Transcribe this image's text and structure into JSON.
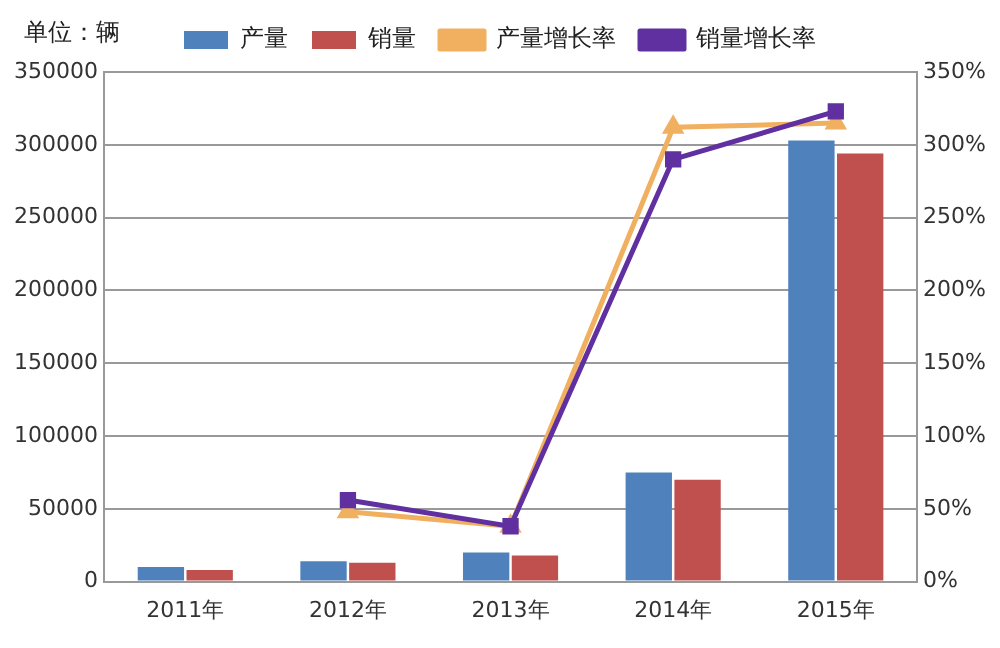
{
  "chart_data": {
    "type": "bar",
    "categories": [
      "2011年",
      "2012年",
      "2013年",
      "2014年",
      "2015年"
    ],
    "series": [
      {
        "name": "产量",
        "color": "#4f81bd",
        "values": [
          10000,
          14000,
          20000,
          75000,
          303000
        ]
      },
      {
        "name": "销量",
        "color": "#c0504d",
        "values": [
          8000,
          13000,
          18000,
          70000,
          294000
        ]
      },
      {
        "name": "产量增长率",
        "type": "line",
        "axis": "y2",
        "color": "#f0b060",
        "marker": "triangle",
        "values": [
          null,
          48,
          38,
          312,
          315
        ]
      },
      {
        "name": "销量增长率",
        "type": "line",
        "axis": "y2",
        "color": "#6030a0",
        "marker": "square",
        "values": [
          null,
          56,
          38,
          290,
          323
        ]
      }
    ],
    "ylim": [
      0,
      350000
    ],
    "yticks": [
      0,
      50000,
      100000,
      150000,
      200000,
      250000,
      300000,
      350000
    ],
    "y2lim": [
      0,
      350
    ],
    "y2ticks": [
      {
        "value": 0,
        "label": "0%"
      },
      {
        "value": 50,
        "label": "50%"
      },
      {
        "value": 100,
        "label": "100%"
      },
      {
        "value": 150,
        "label": "150%"
      },
      {
        "value": 200,
        "label": "200%"
      },
      {
        "value": 250,
        "label": "250%"
      },
      {
        "value": 300,
        "label": "300%"
      },
      {
        "value": 350,
        "label": "350%"
      }
    ],
    "grid": "y",
    "legend": "top",
    "annotations": [
      "单位：辆"
    ]
  }
}
